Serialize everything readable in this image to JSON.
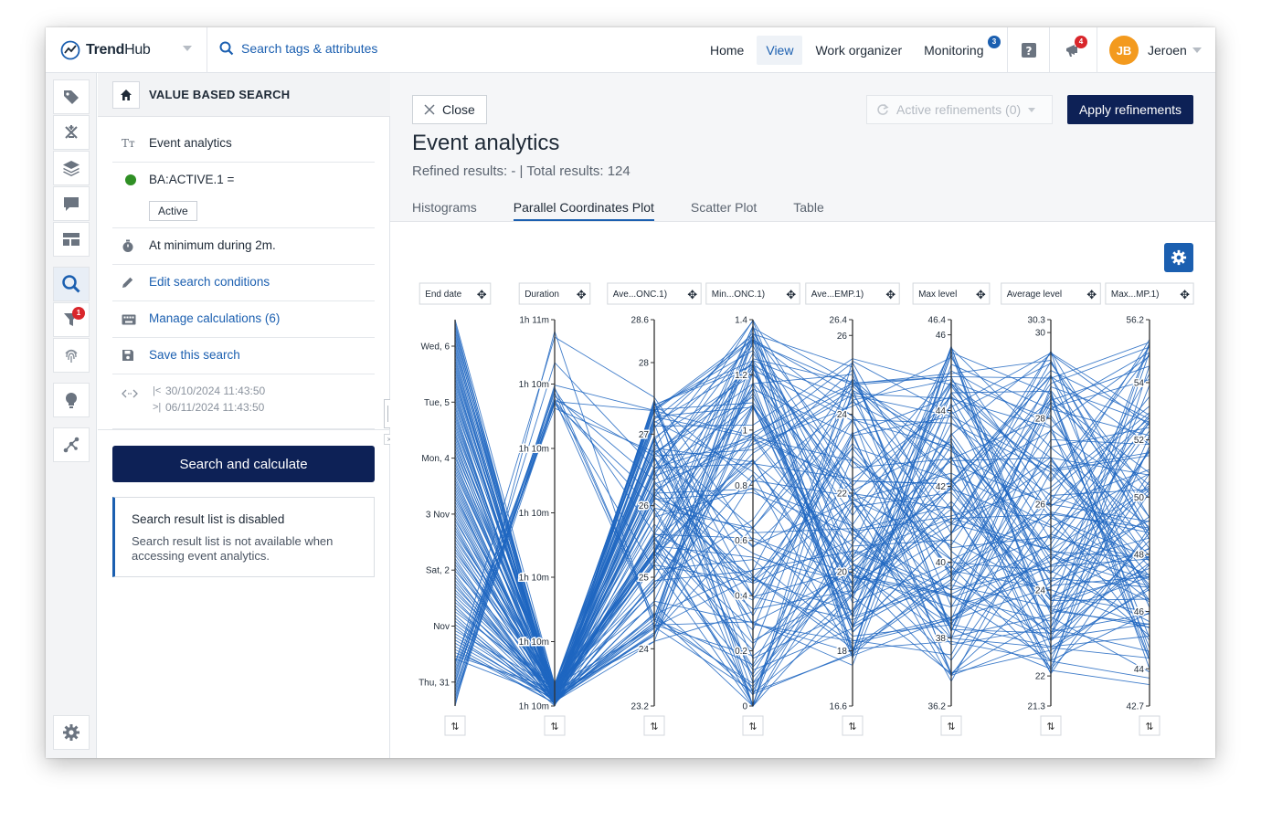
{
  "app": {
    "name_bold": "Trend",
    "name_light": "Hub"
  },
  "top": {
    "search_placeholder": "Search tags & attributes",
    "nav": [
      "Home",
      "View",
      "Work organizer",
      "Monitoring"
    ],
    "monitoring_badge": "3",
    "notification_badge": "4",
    "user_initials": "JB",
    "user_name": "Jeroen"
  },
  "rail": {
    "filter_badge": "1"
  },
  "panel": {
    "title": "VALUE BASED SEARCH",
    "event_label": "Event analytics",
    "condition_tag": "BA:ACTIVE.1 =",
    "condition_value": "Active",
    "duration": "At minimum during 2m.",
    "edit_link": "Edit search conditions",
    "calc_link": "Manage calculations (6)",
    "save_link": "Save this search",
    "date_start": "30/10/2024 11:43:50",
    "date_end": "06/11/2024 11:43:50",
    "search_button": "Search and calculate",
    "info_title": "Search result list is disabled",
    "info_body": "Search result list is not available when accessing event analytics."
  },
  "main": {
    "close_label": "Close",
    "refinements_label": "Active refinements (0)",
    "apply_label": "Apply refinements",
    "title": "Event analytics",
    "subtitle": "Refined results: - | Total results: 124",
    "tabs": [
      "Histograms",
      "Parallel Coordinates Plot",
      "Scatter Plot",
      "Table"
    ],
    "active_tab": 1
  },
  "colors": {
    "accent": "#1b5fb0",
    "navy": "#0d2156",
    "line": "#1f66c1",
    "badge_red": "#d9262b",
    "badge_blue": "#1b5fb0",
    "avatar": "#f39a1e",
    "status_green": "#2f8f24"
  },
  "chart_data": {
    "type": "parallel-coordinates",
    "total_lines": 124,
    "axes": [
      {
        "name": "End date",
        "ticks": [
          "Wed, 6",
          "Tue, 5",
          "Mon, 4",
          "3 Nov",
          "Sat, 2",
          "Nov",
          "Thu, 31"
        ]
      },
      {
        "name": "Duration",
        "ticks": [
          "1h 11m",
          "1h 10m",
          "1h 10m",
          "1h 10m",
          "1h 10m",
          "1h 10m",
          "1h 10m"
        ]
      },
      {
        "name": "Ave...ONC.1)",
        "range": [
          23.2,
          28.6
        ],
        "ticks": [
          28.6,
          28,
          27,
          26,
          25,
          24,
          23.2
        ]
      },
      {
        "name": "Min...ONC.1)",
        "range": [
          0,
          1.4
        ],
        "ticks": [
          1.4,
          1.2,
          1,
          0.8,
          0.6,
          0.4,
          0.2,
          0
        ]
      },
      {
        "name": "Ave...EMP.1)",
        "range": [
          16.6,
          26.4
        ],
        "ticks": [
          26.4,
          26,
          24,
          22,
          20,
          18,
          16.6
        ]
      },
      {
        "name": "Max level",
        "range": [
          36.2,
          46.4
        ],
        "ticks": [
          46.4,
          46,
          44,
          42,
          40,
          38,
          36.2
        ]
      },
      {
        "name": "Average level",
        "range": [
          21.3,
          30.3
        ],
        "ticks": [
          30.3,
          30,
          28,
          26,
          24,
          22,
          21.3
        ]
      },
      {
        "name": "Max...MP.1)",
        "range": [
          42.7,
          56.2
        ],
        "ticks": [
          56.2,
          54,
          52,
          50,
          48,
          46,
          44,
          42.7
        ]
      }
    ]
  }
}
